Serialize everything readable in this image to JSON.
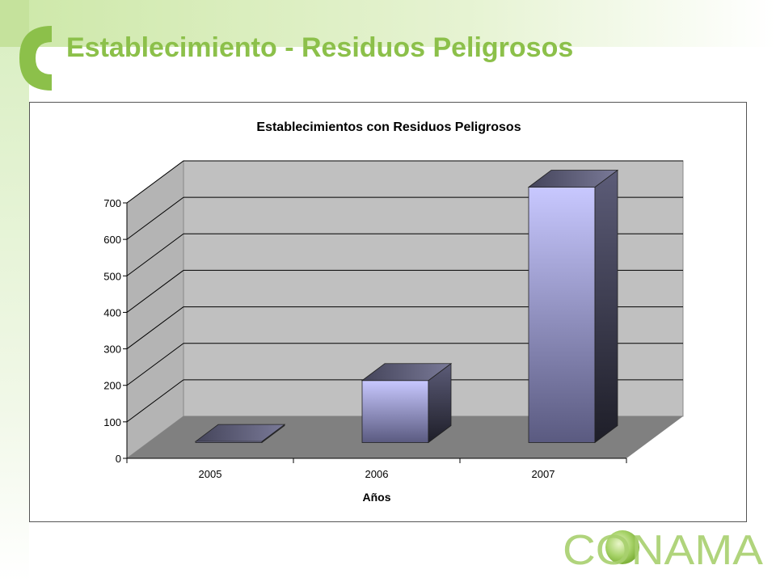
{
  "slide": {
    "title": "Establecimiento - Residuos Peligrosos",
    "logo_text": "CONAMA",
    "accent_color": "#8cc04a"
  },
  "chart_data": {
    "type": "bar",
    "title": "Establecimientos con Residuos Peligrosos",
    "xlabel": "Años",
    "ylabel": "",
    "categories": [
      "2005",
      "2006",
      "2007"
    ],
    "series": [
      {
        "values": [
          3,
          170,
          700
        ]
      }
    ],
    "ylim": [
      0,
      700
    ],
    "yticks": [
      0,
      100,
      200,
      300,
      400,
      500,
      600,
      700
    ],
    "grid": true,
    "three_d": true,
    "colors": {
      "bar_front": "#c8c8ff",
      "bar_side": "#3a3a4e",
      "wall": "#c0c0c0",
      "floor": "#808080"
    }
  }
}
